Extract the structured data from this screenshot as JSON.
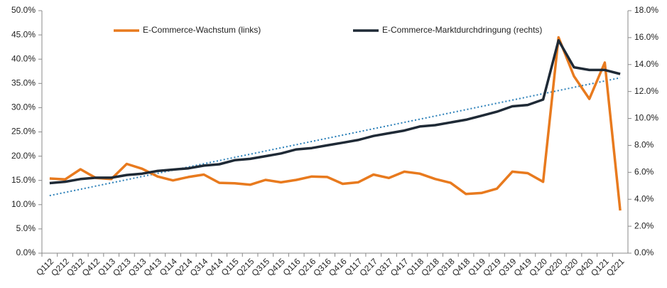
{
  "chart_data": {
    "type": "line",
    "categories": [
      "Q112",
      "Q212",
      "Q312",
      "Q412",
      "Q113",
      "Q213",
      "Q313",
      "Q413",
      "Q114",
      "Q214",
      "Q314",
      "Q414",
      "Q115",
      "Q215",
      "Q315",
      "Q415",
      "Q116",
      "Q216",
      "Q316",
      "Q416",
      "Q117",
      "Q217",
      "Q317",
      "Q417",
      "Q118",
      "Q218",
      "Q318",
      "Q418",
      "Q119",
      "Q219",
      "Q319",
      "Q419",
      "Q120",
      "Q220",
      "Q320",
      "Q420",
      "Q121",
      "Q221"
    ],
    "series": [
      {
        "name": "E-Commerce-Wachstum (links)",
        "color": "#e87a1e",
        "axis": "y",
        "values": [
          15.4,
          15.2,
          17.3,
          15.5,
          15.3,
          18.4,
          17.4,
          15.8,
          15.0,
          15.7,
          16.2,
          14.5,
          14.4,
          14.1,
          15.1,
          14.6,
          15.1,
          15.8,
          15.7,
          14.3,
          14.6,
          16.2,
          15.5,
          16.8,
          16.4,
          15.3,
          14.5,
          12.2,
          12.4,
          13.3,
          16.8,
          16.5,
          14.7,
          44.5,
          36.5,
          31.8,
          39.3,
          8.8
        ]
      },
      {
        "name": "E-Commerce-Marktdurchdringung (rechts)",
        "color": "#1f2a36",
        "axis": "y2",
        "values": [
          5.2,
          5.3,
          5.5,
          5.6,
          5.6,
          5.8,
          5.9,
          6.1,
          6.2,
          6.3,
          6.5,
          6.6,
          6.9,
          7.0,
          7.2,
          7.4,
          7.7,
          7.8,
          8.0,
          8.2,
          8.4,
          8.7,
          8.9,
          9.1,
          9.4,
          9.5,
          9.7,
          9.9,
          10.2,
          10.5,
          10.9,
          11.0,
          11.4,
          15.8,
          13.8,
          13.6,
          13.6,
          13.3
        ]
      }
    ],
    "trendline_color": "#2a7fb8",
    "legend": "top",
    "ylim": [
      0,
      50
    ],
    "yticks": [
      {
        "value": 0,
        "label": "0.0%"
      },
      {
        "value": 5,
        "label": "5.0%"
      },
      {
        "value": 10,
        "label": "10.0%"
      },
      {
        "value": 15,
        "label": "15.0%"
      },
      {
        "value": 20,
        "label": "20.0%"
      },
      {
        "value": 25,
        "label": "25.0%"
      },
      {
        "value": 30,
        "label": "30.0%"
      },
      {
        "value": 35,
        "label": "35.0%"
      },
      {
        "value": 40,
        "label": "40.0%"
      },
      {
        "value": 45,
        "label": "45.0%"
      },
      {
        "value": 50,
        "label": "50.0%"
      }
    ],
    "y2lim": [
      0,
      18
    ],
    "y2ticks": [
      {
        "value": 0,
        "label": "0.0%"
      },
      {
        "value": 2,
        "label": "2.0%"
      },
      {
        "value": 4,
        "label": "4.0%"
      },
      {
        "value": 6,
        "label": "6.0%"
      },
      {
        "value": 8,
        "label": "8.0%"
      },
      {
        "value": 10,
        "label": "10.0%"
      },
      {
        "value": 12,
        "label": "12.0%"
      },
      {
        "value": 14,
        "label": "14.0%"
      },
      {
        "value": 16,
        "label": "16.0%"
      },
      {
        "value": 18,
        "label": "18.0%"
      }
    ]
  }
}
